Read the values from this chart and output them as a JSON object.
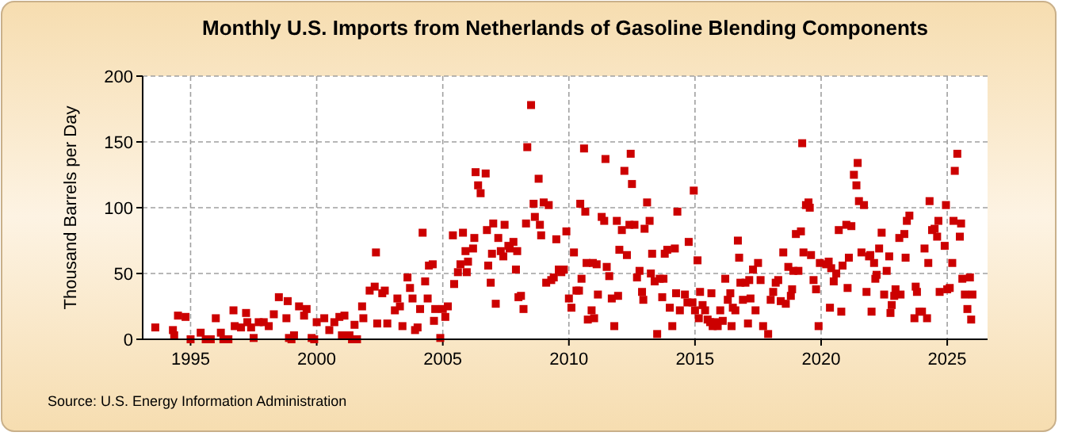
{
  "chart_data": {
    "type": "scatter",
    "title": "Monthly U.S. Imports from Netherlands of Gasoline Blending Components",
    "ylabel": "Thousand Barrels per Day",
    "annotations": [
      "Source: U.S. Energy Information Administration"
    ],
    "marker": "square",
    "grid": true,
    "xlim": [
      1993.1,
      2026.6
    ],
    "xticks": [
      1995,
      2000,
      2005,
      2010,
      2015,
      2020,
      2025
    ],
    "ylim": [
      0,
      200
    ],
    "yticks": [
      0,
      50,
      100,
      150,
      200
    ],
    "series": [
      {
        "color": "#cc0000",
        "x": [
          1993.6,
          1994.3,
          1994.35,
          1994.5,
          1994.8,
          1995.0,
          1995.4,
          1995.6,
          1995.8,
          1996.0,
          1996.2,
          1996.3,
          1996.5,
          1996.7,
          1996.75,
          1997.0,
          1997.2,
          1997.25,
          1997.4,
          1997.5,
          1997.7,
          1997.9,
          1998.1,
          1998.3,
          1998.5,
          1998.8,
          1998.85,
          1998.9,
          1999.0,
          1999.1,
          1999.3,
          1999.5,
          1999.6,
          1999.8,
          1999.9,
          2000.0,
          2000.3,
          2000.5,
          2000.7,
          2000.9,
          2001.0,
          2001.1,
          2001.3,
          2001.4,
          2001.5,
          2001.6,
          2001.8,
          2001.85,
          2002.1,
          2002.3,
          2002.35,
          2002.4,
          2002.6,
          2002.7,
          2002.8,
          2003.1,
          2003.2,
          2003.3,
          2003.4,
          2003.6,
          2003.7,
          2003.8,
          2003.9,
          2004.0,
          2004.1,
          2004.2,
          2004.3,
          2004.4,
          2004.45,
          2004.6,
          2004.65,
          2004.7,
          2004.9,
          2005.0,
          2005.1,
          2005.2,
          2005.4,
          2005.45,
          2005.6,
          2005.7,
          2005.8,
          2005.9,
          2005.95,
          2006.0,
          2006.2,
          2006.25,
          2006.3,
          2006.4,
          2006.5,
          2006.7,
          2006.75,
          2006.8,
          2006.9,
          2006.95,
          2007.0,
          2007.1,
          2007.2,
          2007.3,
          2007.4,
          2007.45,
          2007.6,
          2007.65,
          2007.8,
          2007.9,
          2007.95,
          2008.0,
          2008.1,
          2008.2,
          2008.3,
          2008.35,
          2008.5,
          2008.6,
          2008.65,
          2008.8,
          2008.85,
          2008.9,
          2009.0,
          2009.1,
          2009.2,
          2009.3,
          2009.4,
          2009.5,
          2009.6,
          2009.7,
          2009.8,
          2009.9,
          2010.0,
          2010.1,
          2010.2,
          2010.3,
          2010.4,
          2010.45,
          2010.5,
          2010.6,
          2010.65,
          2010.7,
          2010.75,
          2010.9,
          2010.95,
          2011.0,
          2011.1,
          2011.15,
          2011.3,
          2011.4,
          2011.45,
          2011.5,
          2011.6,
          2011.7,
          2011.8,
          2011.9,
          2011.95,
          2012.0,
          2012.1,
          2012.2,
          2012.3,
          2012.4,
          2012.45,
          2012.5,
          2012.6,
          2012.7,
          2012.8,
          2012.9,
          2012.95,
          2013.0,
          2013.1,
          2013.2,
          2013.25,
          2013.3,
          2013.4,
          2013.5,
          2013.6,
          2013.7,
          2013.75,
          2013.8,
          2013.9,
          2014.0,
          2014.1,
          2014.2,
          2014.25,
          2014.3,
          2014.4,
          2014.6,
          2014.7,
          2014.75,
          2014.9,
          2014.95,
          2015.0,
          2015.1,
          2015.15,
          2015.2,
          2015.3,
          2015.4,
          2015.5,
          2015.6,
          2015.65,
          2015.7,
          2015.8,
          2015.9,
          2016.0,
          2016.1,
          2016.2,
          2016.3,
          2016.4,
          2016.45,
          2016.5,
          2016.6,
          2016.7,
          2016.75,
          2016.8,
          2016.9,
          2017.0,
          2017.1,
          2017.15,
          2017.2,
          2017.3,
          2017.4,
          2017.5,
          2017.6,
          2017.7,
          2017.9,
          2018.0,
          2018.1,
          2018.2,
          2018.3,
          2018.4,
          2018.5,
          2018.6,
          2018.7,
          2018.8,
          2018.85,
          2018.9,
          2019.0,
          2019.1,
          2019.2,
          2019.25,
          2019.3,
          2019.4,
          2019.5,
          2019.55,
          2019.6,
          2019.7,
          2019.8,
          2019.9,
          2019.95,
          2020.2,
          2020.3,
          2020.35,
          2020.4,
          2020.5,
          2020.6,
          2020.7,
          2020.8,
          2020.85,
          2021.0,
          2021.05,
          2021.1,
          2021.2,
          2021.3,
          2021.4,
          2021.45,
          2021.5,
          2021.6,
          2021.7,
          2021.8,
          2021.9,
          2021.95,
          2022.0,
          2022.1,
          2022.15,
          2022.2,
          2022.3,
          2022.4,
          2022.5,
          2022.6,
          2022.7,
          2022.75,
          2022.8,
          2022.9,
          2022.95,
          2023.1,
          2023.15,
          2023.3,
          2023.35,
          2023.4,
          2023.5,
          2023.7,
          2023.75,
          2023.8,
          2023.9,
          2024.0,
          2024.1,
          2024.2,
          2024.25,
          2024.3,
          2024.4,
          2024.5,
          2024.6,
          2024.65,
          2024.7,
          2024.9,
          2024.95,
          2025.0,
          2025.1,
          2025.2,
          2025.25,
          2025.3,
          2025.4,
          2025.5,
          2025.55,
          2025.6,
          2025.7,
          2025.8,
          2025.9,
          2025.95,
          2026.0
        ],
        "values": [
          9,
          7,
          3,
          18,
          17,
          0,
          5,
          0,
          0,
          16,
          5,
          0,
          0,
          22,
          10,
          9,
          20,
          13,
          9,
          1,
          13,
          13,
          10,
          19,
          32,
          16,
          29,
          1,
          0,
          3,
          25,
          18,
          23,
          1,
          0,
          13,
          16,
          7,
          13,
          17,
          3,
          18,
          3,
          0,
          11,
          0,
          25,
          16,
          37,
          40,
          66,
          12,
          35,
          37,
          12,
          22,
          31,
          25,
          10,
          47,
          39,
          31,
          7,
          9,
          23,
          81,
          44,
          31,
          56,
          57,
          14,
          23,
          1,
          23,
          17,
          25,
          79,
          42,
          51,
          57,
          81,
          67,
          51,
          59,
          69,
          77,
          127,
          117,
          111,
          126,
          83,
          56,
          43,
          65,
          88,
          27,
          77,
          67,
          63,
          87,
          71,
          69,
          74,
          53,
          67,
          32,
          33,
          23,
          88,
          146,
          178,
          103,
          93,
          122,
          87,
          79,
          104,
          43,
          102,
          45,
          47,
          76,
          53,
          51,
          53,
          82,
          31,
          24,
          66,
          37,
          37,
          103,
          46,
          145,
          97,
          58,
          15,
          22,
          58,
          16,
          57,
          34,
          93,
          90,
          137,
          55,
          48,
          31,
          10,
          90,
          33,
          68,
          83,
          128,
          64,
          87,
          141,
          118,
          87,
          47,
          52,
          36,
          30,
          84,
          104,
          90,
          50,
          65,
          44,
          4,
          46,
          32,
          46,
          65,
          68,
          24,
          10,
          69,
          35,
          97,
          22,
          34,
          28,
          74,
          28,
          113,
          22,
          60,
          16,
          36,
          26,
          22,
          15,
          13,
          35,
          10,
          13,
          10,
          22,
          14,
          46,
          30,
          35,
          10,
          24,
          22,
          75,
          62,
          43,
          30,
          43,
          12,
          45,
          31,
          53,
          22,
          58,
          45,
          10,
          4,
          30,
          36,
          43,
          45,
          29,
          66,
          27,
          55,
          33,
          38,
          52,
          80,
          52,
          82,
          149,
          66,
          102,
          104,
          100,
          64,
          45,
          38,
          10,
          58,
          57,
          59,
          24,
          54,
          44,
          50,
          83,
          21,
          56,
          87,
          39,
          62,
          86,
          125,
          117,
          134,
          105,
          66,
          102,
          36,
          63,
          64,
          21,
          58,
          46,
          49,
          69,
          81,
          34,
          52,
          63,
          20,
          26,
          33,
          38,
          77,
          34,
          80,
          62,
          90,
          94,
          16,
          40,
          36,
          21,
          21,
          69,
          16,
          58,
          105,
          83,
          84,
          78,
          90,
          36,
          71,
          102,
          38,
          39,
          58,
          90,
          128,
          141,
          78,
          88,
          46,
          34,
          23,
          47,
          15,
          34
        ]
      }
    ]
  }
}
